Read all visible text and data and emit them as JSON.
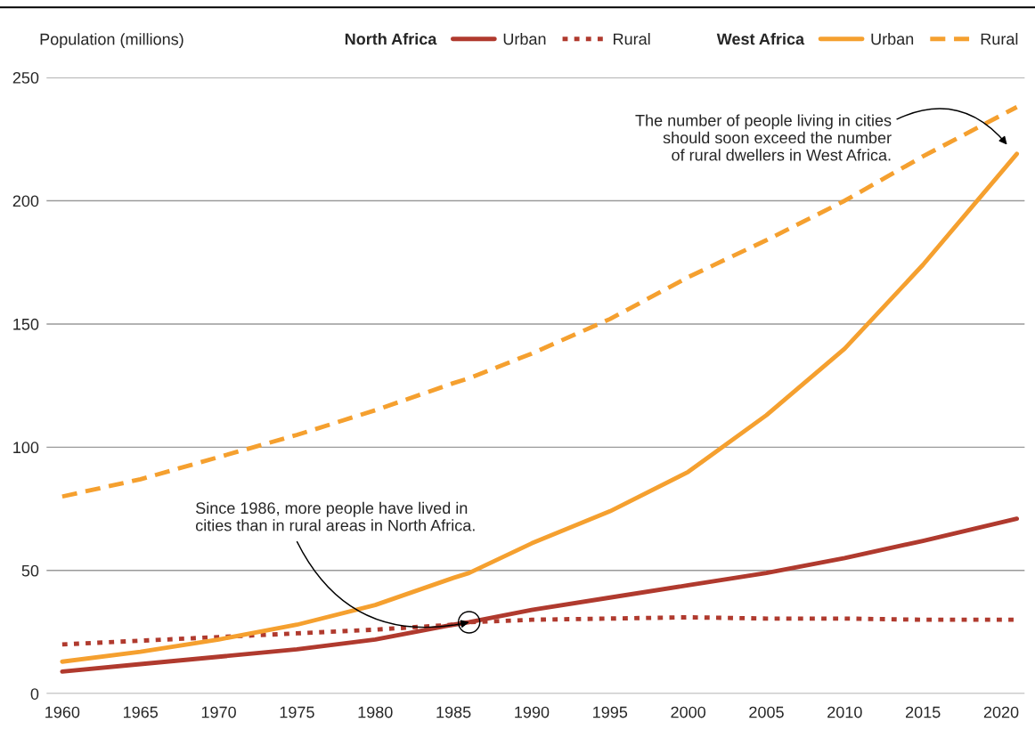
{
  "chart_data": {
    "type": "line",
    "ylabel": "Population (millions)",
    "x": [
      1960,
      1965,
      1970,
      1975,
      1980,
      1985,
      1986,
      1990,
      1995,
      2000,
      2005,
      2010,
      2015,
      2021
    ],
    "series": [
      {
        "name": "Urban",
        "color": "#b03a2e",
        "line_style": "solid",
        "values": [
          9,
          12,
          15,
          18,
          22,
          28,
          29,
          34,
          39,
          44,
          49,
          55,
          62,
          71
        ]
      },
      {
        "name": "Rural",
        "color": "#b03a2e",
        "line_style": "dotted",
        "values": [
          20,
          21.5,
          23,
          24.5,
          26,
          28,
          29,
          30,
          30.5,
          31,
          30.5,
          30.5,
          30,
          30
        ]
      },
      {
        "name": "Urban",
        "color": "#f5a02f",
        "line_style": "solid",
        "values": [
          13,
          17,
          22,
          28,
          36,
          47,
          49,
          61,
          74,
          90,
          113,
          140,
          174,
          219
        ]
      },
      {
        "name": "Rural",
        "color": "#f5a02f",
        "line_style": "dashed",
        "values": [
          80,
          87,
          96,
          105,
          115,
          126,
          128,
          138,
          152,
          169,
          184,
          200,
          218,
          238
        ]
      }
    ],
    "xlim": [
      1959,
      2021.5
    ],
    "xticks": [
      1960,
      1965,
      1970,
      1975,
      1980,
      1985,
      1990,
      1995,
      2000,
      2005,
      2010,
      2015,
      2020
    ],
    "ylim": [
      0,
      250
    ],
    "yticks": [
      0,
      50,
      100,
      150,
      200,
      250
    ],
    "grid": "y",
    "legend": "top",
    "annotations": [
      "North Africa",
      "West Africa",
      "The number of people living in cities\nshould soon exceed the number\nof rural dwellers in West Africa.",
      {
        "text": "Since 1986, more people have lived in\ncities than in rural areas in North Africa.",
        "x": 1986,
        "y": 29
      }
    ]
  }
}
